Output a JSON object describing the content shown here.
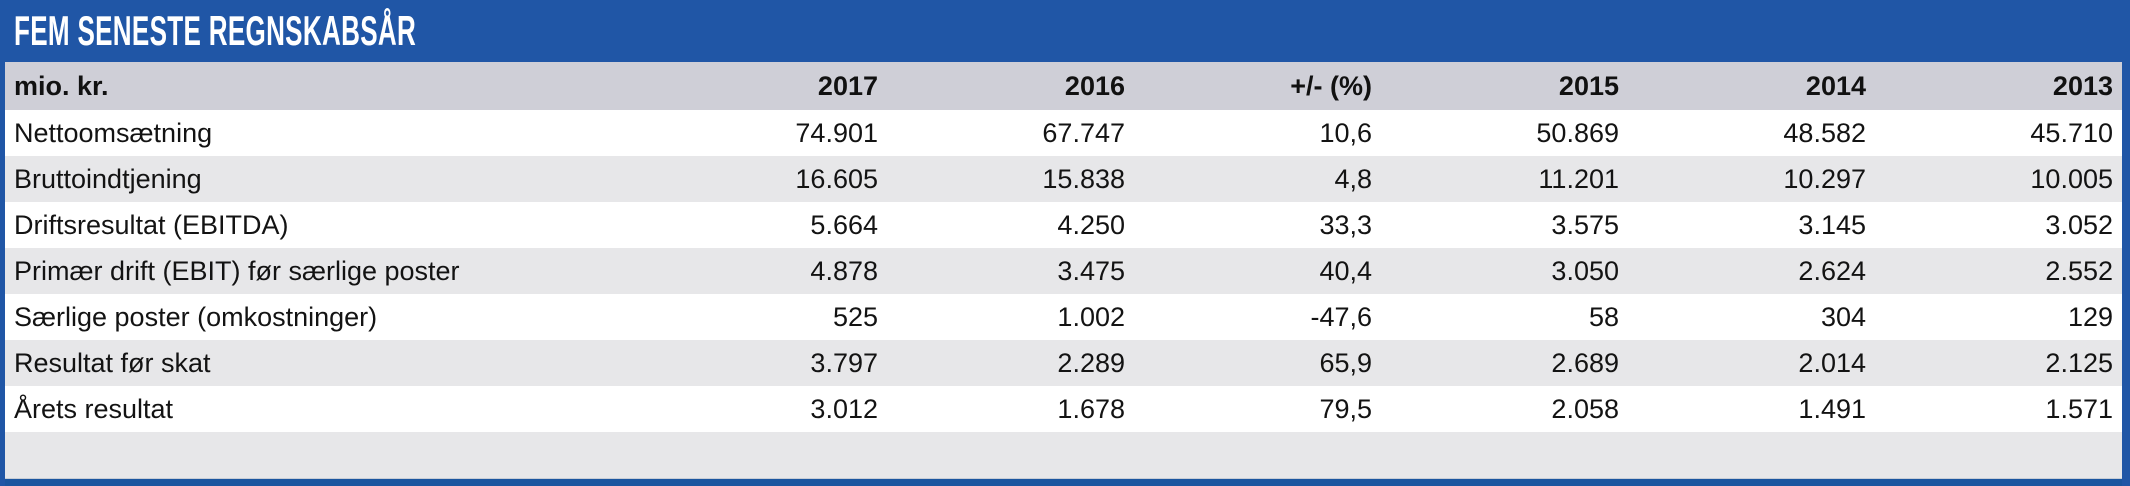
{
  "title": "FEM SENESTE REGNSKABSÅR",
  "table": {
    "unit_label": "mio. kr.",
    "columns": [
      "2017",
      "2016",
      "+/- (%)",
      "2015",
      "2014",
      "2013"
    ],
    "rows": [
      {
        "label": "Nettoomsætning",
        "values": [
          "74.901",
          "67.747",
          "10,6",
          "50.869",
          "48.582",
          "45.710"
        ]
      },
      {
        "label": "Bruttoindtjening",
        "values": [
          "16.605",
          "15.838",
          "4,8",
          "11.201",
          "10.297",
          "10.005"
        ]
      },
      {
        "label": "Driftsresultat (EBITDA)",
        "values": [
          "5.664",
          "4.250",
          "33,3",
          "3.575",
          "3.145",
          "3.052"
        ]
      },
      {
        "label": "Primær drift (EBIT) før særlige poster",
        "values": [
          "4.878",
          "3.475",
          "40,4",
          "3.050",
          "2.624",
          "2.552"
        ]
      },
      {
        "label": "Særlige poster (omkostninger)",
        "values": [
          "525",
          "1.002",
          "-47,6",
          "58",
          "304",
          "129"
        ]
      },
      {
        "label": "Resultat før skat",
        "values": [
          "3.797",
          "2.289",
          "65,9",
          "2.689",
          "2.014",
          "2.125"
        ]
      },
      {
        "label": "Årets resultat",
        "values": [
          "3.012",
          "1.678",
          "79,5",
          "2.058",
          "1.491",
          "1.571"
        ]
      }
    ]
  },
  "chart_data": {
    "type": "table",
    "title": "FEM SENESTE REGNSKABSÅR",
    "unit": "mio. kr.",
    "columns": [
      "2017",
      "2016",
      "+/- (%)",
      "2015",
      "2014",
      "2013"
    ],
    "row_labels": [
      "Nettoomsætning",
      "Bruttoindtjening",
      "Driftsresultat (EBITDA)",
      "Primær drift (EBIT) før særlige poster",
      "Særlige poster (omkostninger)",
      "Resultat før skat",
      "Årets resultat"
    ],
    "values": [
      [
        74901,
        67747,
        10.6,
        50869,
        48582,
        45710
      ],
      [
        16605,
        15838,
        4.8,
        11201,
        10297,
        10005
      ],
      [
        5664,
        4250,
        33.3,
        3575,
        3145,
        3052
      ],
      [
        4878,
        3475,
        40.4,
        3050,
        2624,
        2552
      ],
      [
        525,
        1002,
        -47.6,
        58,
        304,
        129
      ],
      [
        3797,
        2289,
        65.9,
        2689,
        2014,
        2125
      ],
      [
        3012,
        1678,
        79.5,
        2058,
        1491,
        1571
      ]
    ],
    "number_format": "da-DK (thousands '.', decimals ',')"
  },
  "colors": {
    "brand_blue": "#2056A6",
    "bottom_bar_blue": "#1A559F",
    "header_row_bg": "#CFCFD7",
    "alt_row_bg": "#E7E7E9",
    "row_bg": "#FFFFFF",
    "title_text": "#FFFFFF",
    "body_text": "#131313"
  }
}
